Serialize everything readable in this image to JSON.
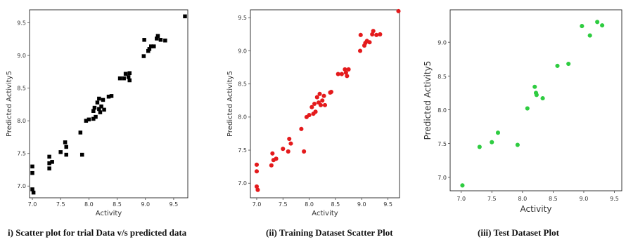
{
  "captions": [
    "i) Scatter plot for trial  Data v/s predicted data",
    "(ii) Training Dataset  Scatter Plot",
    "(iii) Test Dataset Plot"
  ],
  "chart_data": [
    {
      "type": "scatter",
      "title": "",
      "xlabel": "Activity",
      "ylabel": "Predicted Activity5",
      "xlim": [
        6.95,
        9.75
      ],
      "ylim": [
        6.82,
        9.7
      ],
      "xticks": [
        7.0,
        7.5,
        8.0,
        8.5,
        9.0,
        9.5
      ],
      "yticks": [
        7.0,
        7.5,
        8.0,
        8.5,
        9.0,
        9.5
      ],
      "grid": false,
      "marker": "square",
      "color": "#000000",
      "points": [
        [
          7.0,
          7.3
        ],
        [
          7.0,
          7.2
        ],
        [
          7.0,
          6.95
        ],
        [
          7.02,
          6.9
        ],
        [
          7.3,
          7.27
        ],
        [
          7.3,
          7.35
        ],
        [
          7.3,
          7.45
        ],
        [
          7.35,
          7.37
        ],
        [
          7.5,
          7.52
        ],
        [
          7.58,
          7.67
        ],
        [
          7.6,
          7.6
        ],
        [
          7.6,
          7.48
        ],
        [
          7.85,
          7.82
        ],
        [
          7.88,
          7.48
        ],
        [
          7.95,
          8.0
        ],
        [
          8.0,
          8.02
        ],
        [
          8.08,
          8.03
        ],
        [
          8.08,
          8.15
        ],
        [
          8.1,
          8.2
        ],
        [
          8.12,
          8.06
        ],
        [
          8.15,
          8.28
        ],
        [
          8.18,
          8.18
        ],
        [
          8.18,
          8.34
        ],
        [
          8.2,
          8.13
        ],
        [
          8.22,
          8.22
        ],
        [
          8.25,
          8.32
        ],
        [
          8.27,
          8.17
        ],
        [
          8.35,
          8.37
        ],
        [
          8.4,
          8.38
        ],
        [
          8.55,
          8.65
        ],
        [
          8.62,
          8.65
        ],
        [
          8.65,
          8.72
        ],
        [
          8.7,
          8.67
        ],
        [
          8.72,
          8.62
        ],
        [
          8.72,
          8.73
        ],
        [
          8.97,
          8.99
        ],
        [
          8.98,
          9.24
        ],
        [
          9.05,
          9.07
        ],
        [
          9.07,
          9.1
        ],
        [
          9.1,
          9.14
        ],
        [
          9.15,
          9.14
        ],
        [
          9.2,
          9.26
        ],
        [
          9.22,
          9.3
        ],
        [
          9.27,
          9.24
        ],
        [
          9.35,
          9.23
        ],
        [
          9.7,
          9.6
        ]
      ]
    },
    {
      "type": "scatter",
      "title": "",
      "xlabel": "Activity",
      "ylabel": "Predicted Activity5",
      "xlim": [
        6.88,
        9.72
      ],
      "ylim": [
        6.78,
        9.62
      ],
      "xticks": [
        7.0,
        7.5,
        8.0,
        8.5,
        9.0,
        9.5
      ],
      "yticks": [
        7.0,
        7.5,
        8.0,
        8.5,
        9.0,
        9.5
      ],
      "grid": false,
      "marker": "circle",
      "color": "#e41a1c",
      "points": [
        [
          7.0,
          7.28
        ],
        [
          7.0,
          7.18
        ],
        [
          7.0,
          6.95
        ],
        [
          7.02,
          6.9
        ],
        [
          7.28,
          7.27
        ],
        [
          7.3,
          7.45
        ],
        [
          7.32,
          7.35
        ],
        [
          7.37,
          7.37
        ],
        [
          7.5,
          7.52
        ],
        [
          7.6,
          7.48
        ],
        [
          7.62,
          7.67
        ],
        [
          7.65,
          7.6
        ],
        [
          7.85,
          7.82
        ],
        [
          7.9,
          7.48
        ],
        [
          7.95,
          8.0
        ],
        [
          8.0,
          8.03
        ],
        [
          8.05,
          8.15
        ],
        [
          8.08,
          8.05
        ],
        [
          8.1,
          8.2
        ],
        [
          8.12,
          8.08
        ],
        [
          8.15,
          8.3
        ],
        [
          8.18,
          8.22
        ],
        [
          8.2,
          8.35
        ],
        [
          8.22,
          8.18
        ],
        [
          8.25,
          8.25
        ],
        [
          8.28,
          8.32
        ],
        [
          8.3,
          8.18
        ],
        [
          8.4,
          8.37
        ],
        [
          8.42,
          8.38
        ],
        [
          8.55,
          8.65
        ],
        [
          8.62,
          8.65
        ],
        [
          8.68,
          8.72
        ],
        [
          8.7,
          8.67
        ],
        [
          8.72,
          8.62
        ],
        [
          8.75,
          8.72
        ],
        [
          8.97,
          9.0
        ],
        [
          8.98,
          9.24
        ],
        [
          9.05,
          9.08
        ],
        [
          9.07,
          9.12
        ],
        [
          9.1,
          9.15
        ],
        [
          9.15,
          9.13
        ],
        [
          9.2,
          9.25
        ],
        [
          9.22,
          9.3
        ],
        [
          9.28,
          9.24
        ],
        [
          9.35,
          9.25
        ],
        [
          9.7,
          9.6
        ]
      ]
    },
    {
      "type": "scatter",
      "title": "",
      "xlabel": "Activity",
      "ylabel": "Predicted Activity5",
      "xlim": [
        6.82,
        9.62
      ],
      "ylim": [
        6.8,
        9.48
      ],
      "xticks": [
        7.0,
        7.5,
        8.0,
        8.5,
        9.0,
        9.5
      ],
      "yticks": [
        7.0,
        7.5,
        8.0,
        8.5,
        9.0
      ],
      "grid": false,
      "marker": "circle",
      "color": "#2ecc40",
      "points": [
        [
          7.02,
          6.88
        ],
        [
          7.3,
          7.45
        ],
        [
          7.5,
          7.52
        ],
        [
          7.6,
          7.66
        ],
        [
          7.92,
          7.48
        ],
        [
          8.08,
          8.02
        ],
        [
          8.2,
          8.34
        ],
        [
          8.22,
          8.25
        ],
        [
          8.23,
          8.22
        ],
        [
          8.33,
          8.17
        ],
        [
          8.57,
          8.65
        ],
        [
          8.75,
          8.68
        ],
        [
          8.97,
          9.24
        ],
        [
          9.1,
          9.1
        ],
        [
          9.22,
          9.3
        ],
        [
          9.3,
          9.25
        ]
      ]
    }
  ]
}
